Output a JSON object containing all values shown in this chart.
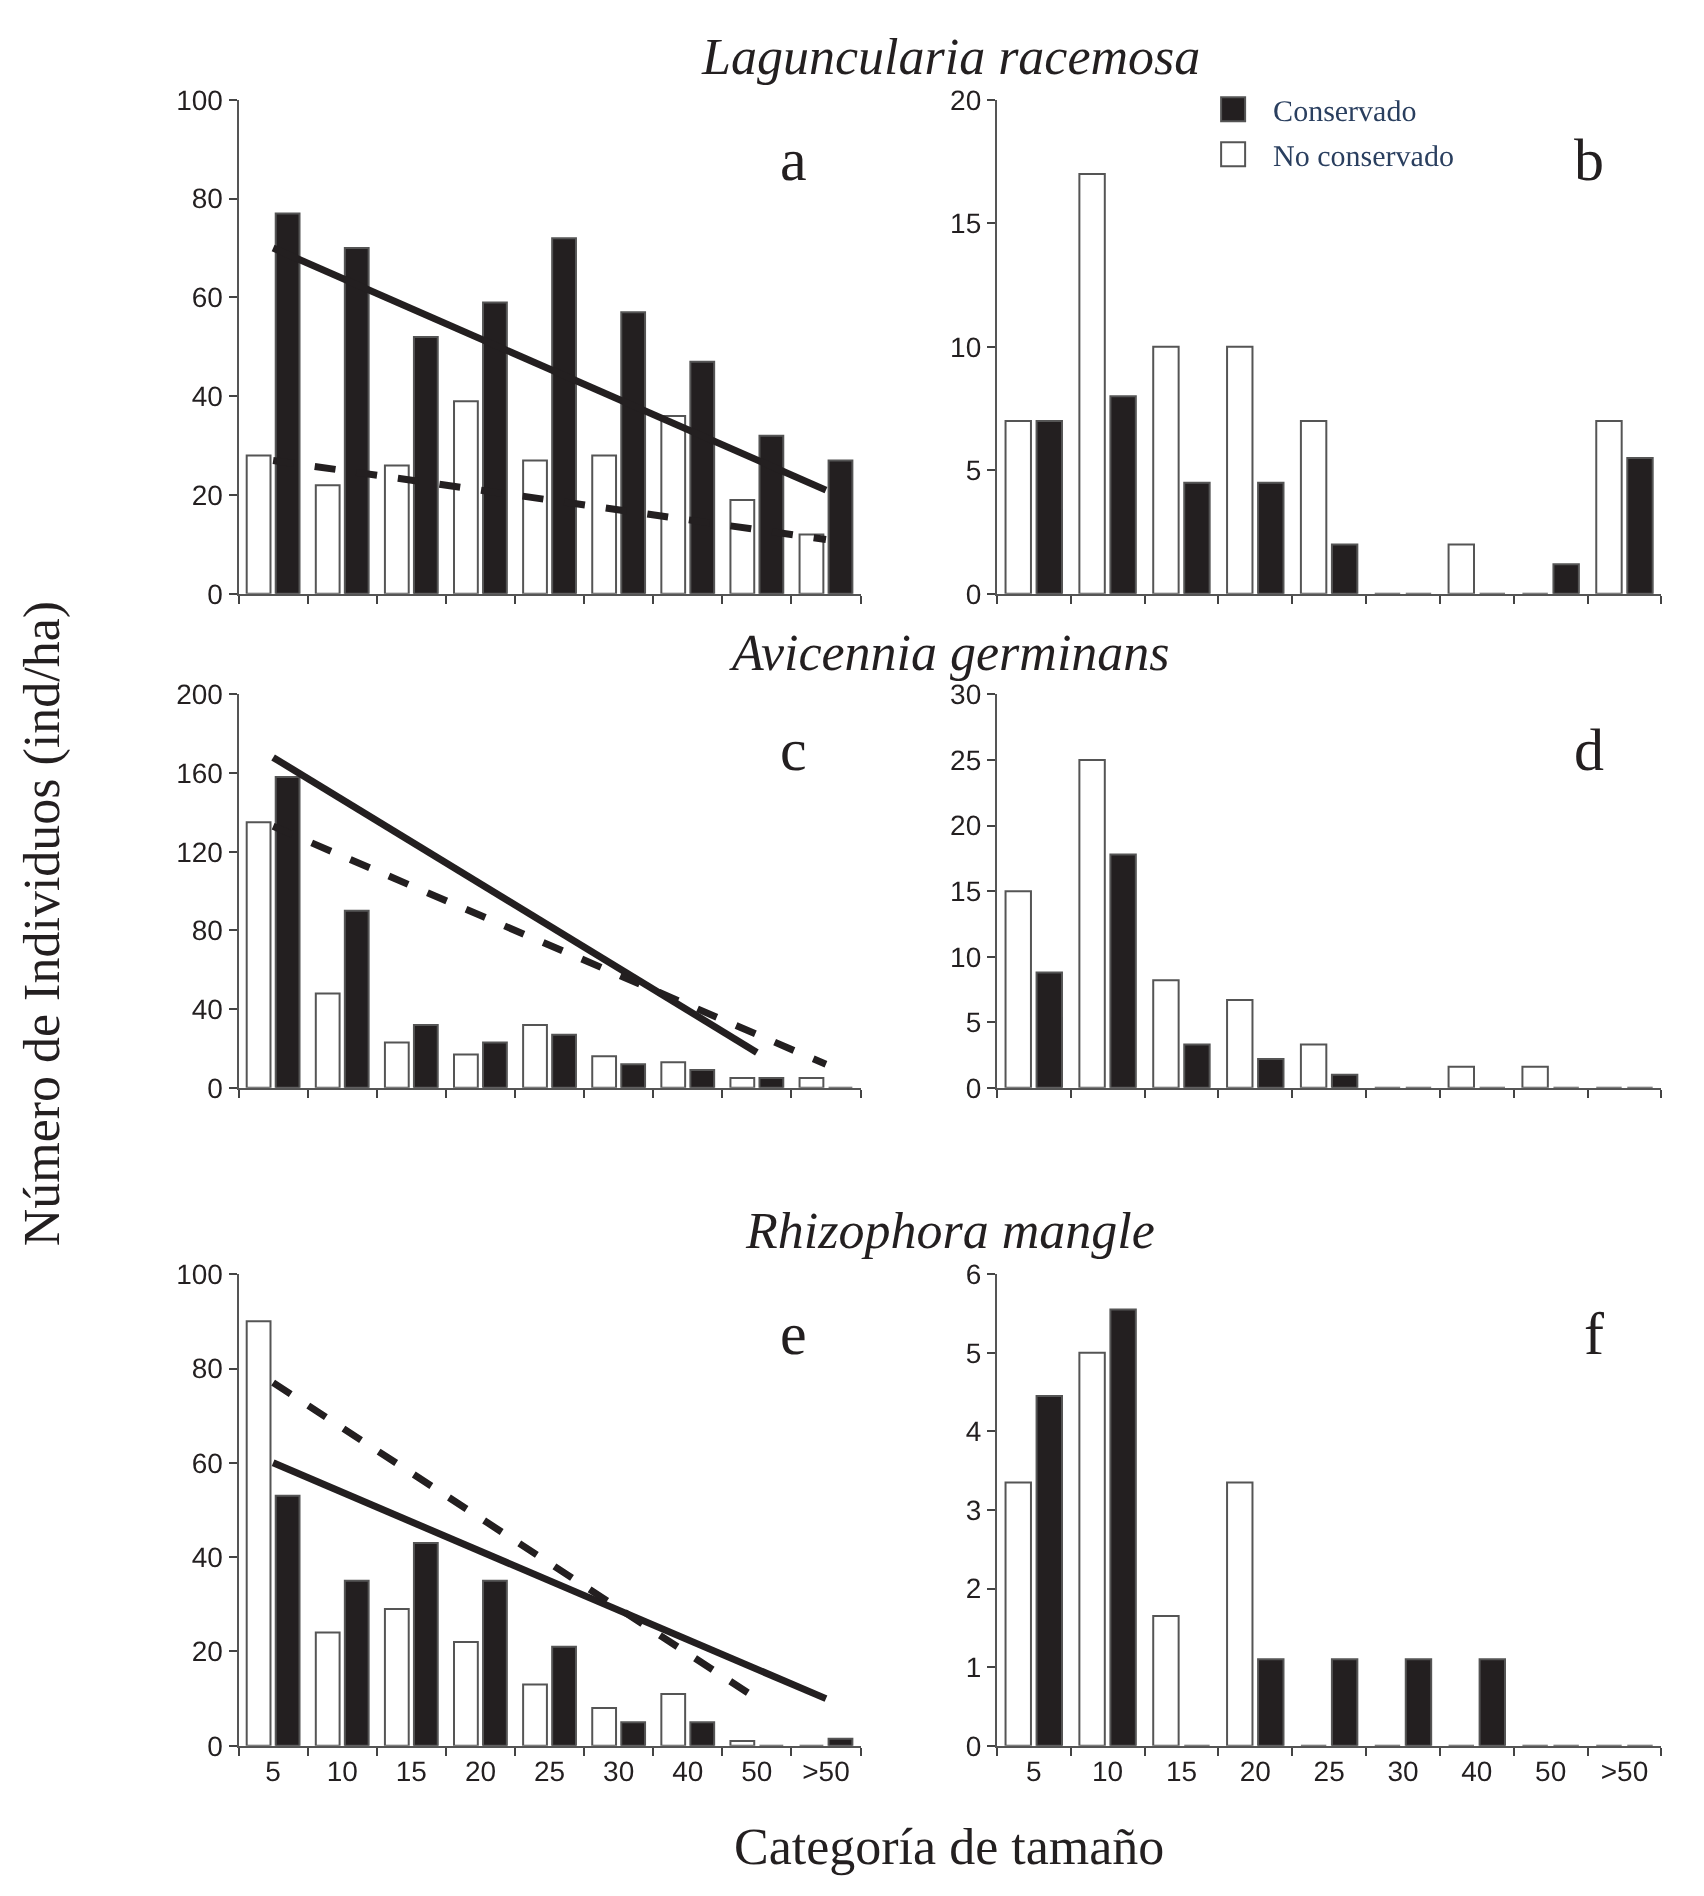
{
  "chart_data": [
    {
      "type": "bar",
      "title": "Laguncularia racemosa",
      "categories": [
        "5",
        "10",
        "15",
        "20",
        "25",
        "30",
        "40",
        "50",
        ">50"
      ],
      "ylim": [
        0,
        100
      ],
      "yticks": [
        0,
        20,
        40,
        60,
        80,
        100
      ],
      "tick_labels": "y",
      "annotations": [
        "a"
      ],
      "series": [
        {
          "color": "#ffffff",
          "values": [
            28,
            22,
            26,
            39,
            27,
            28,
            36,
            19,
            12
          ]
        },
        {
          "color": "#231f20",
          "values": [
            77,
            70,
            52,
            59,
            72,
            57,
            47,
            32,
            27
          ]
        },
        {
          "type": "line",
          "color": "#231f20",
          "line_style": "solid",
          "x": [
            "5",
            ">50"
          ],
          "values": [
            70,
            21
          ]
        },
        {
          "type": "line",
          "color": "#231f20",
          "line_style": "dashed",
          "x": [
            "5",
            ">50"
          ],
          "values": [
            27,
            11
          ]
        }
      ]
    },
    {
      "type": "bar",
      "categories": [
        "5",
        "10",
        "15",
        "20",
        "25",
        "30",
        "40",
        "50",
        ">50"
      ],
      "ylim": [
        0,
        20
      ],
      "yticks": [
        0,
        5,
        10,
        15,
        20
      ],
      "tick_labels": "y",
      "legend": "top",
      "annotations": [
        "b"
      ],
      "series": [
        {
          "name": "No conservado",
          "color": "#ffffff",
          "values": [
            7,
            17,
            10,
            10,
            7,
            0,
            2,
            0,
            7
          ]
        },
        {
          "name": "Conservado",
          "color": "#231f20",
          "values": [
            7,
            8,
            4.5,
            4.5,
            2,
            0,
            0,
            1.2,
            5.5
          ]
        }
      ]
    },
    {
      "type": "bar",
      "title": "Avicennia germinans",
      "ylabel": "Número de Individuos (ind/ha)",
      "categories": [
        "5",
        "10",
        "15",
        "20",
        "25",
        "30",
        "40",
        "50",
        ">50"
      ],
      "ylim": [
        0,
        200
      ],
      "yticks": [
        0,
        40,
        80,
        120,
        160,
        200
      ],
      "tick_labels": "y",
      "annotations": [
        "c"
      ],
      "series": [
        {
          "color": "#ffffff",
          "values": [
            135,
            48,
            23,
            17,
            32,
            16,
            13,
            5,
            5
          ]
        },
        {
          "color": "#231f20",
          "values": [
            158,
            90,
            32,
            23,
            27,
            12,
            9,
            5,
            0
          ]
        },
        {
          "type": "line",
          "color": "#231f20",
          "line_style": "solid",
          "x": [
            "5",
            "50"
          ],
          "values": [
            168,
            18
          ]
        },
        {
          "type": "line",
          "color": "#231f20",
          "line_style": "dashed",
          "x": [
            "5",
            ">50"
          ],
          "values": [
            133,
            12
          ]
        }
      ]
    },
    {
      "type": "bar",
      "categories": [
        "5",
        "10",
        "15",
        "20",
        "25",
        "30",
        "40",
        "50",
        ">50"
      ],
      "ylim": [
        0,
        30
      ],
      "yticks": [
        0,
        5,
        10,
        15,
        20,
        25,
        30
      ],
      "tick_labels": "y",
      "annotations": [
        "d"
      ],
      "series": [
        {
          "color": "#ffffff",
          "values": [
            15,
            25,
            8.2,
            6.7,
            3.3,
            0,
            1.6,
            1.6,
            0
          ]
        },
        {
          "color": "#231f20",
          "values": [
            8.8,
            17.8,
            3.3,
            2.2,
            1,
            0,
            0,
            0,
            0
          ]
        }
      ]
    },
    {
      "type": "bar",
      "title": "Rhizophora mangle",
      "xlabel": "Categoría de tamaño",
      "categories": [
        "5",
        "10",
        "15",
        "20",
        "25",
        "30",
        "40",
        "50",
        ">50"
      ],
      "ylim": [
        0,
        100
      ],
      "yticks": [
        0,
        20,
        40,
        60,
        80,
        100
      ],
      "annotations": [
        "e"
      ],
      "series": [
        {
          "color": "#ffffff",
          "values": [
            90,
            24,
            29,
            22,
            13,
            8,
            11,
            1,
            0
          ]
        },
        {
          "color": "#231f20",
          "values": [
            53,
            35,
            43,
            35,
            21,
            5,
            5,
            0,
            1.5
          ]
        },
        {
          "type": "line",
          "color": "#231f20",
          "line_style": "solid",
          "x": [
            "5",
            ">50"
          ],
          "values": [
            60,
            10
          ]
        },
        {
          "type": "line",
          "color": "#231f20",
          "line_style": "dashed",
          "x": [
            "5",
            "50"
          ],
          "values": [
            77,
            10
          ]
        }
      ]
    },
    {
      "type": "bar",
      "categories": [
        "5",
        "10",
        "15",
        "20",
        "25",
        "30",
        "40",
        "50",
        ">50"
      ],
      "ylim": [
        0,
        6
      ],
      "yticks": [
        0,
        1,
        2,
        3,
        4,
        5,
        6
      ],
      "annotations": [
        "f"
      ],
      "series": [
        {
          "color": "#ffffff",
          "values": [
            3.35,
            5,
            1.65,
            3.35,
            0,
            0,
            0,
            0,
            0
          ]
        },
        {
          "color": "#231f20",
          "values": [
            4.45,
            5.55,
            0,
            1.1,
            1.1,
            1.1,
            1.1,
            0,
            0
          ]
        }
      ]
    }
  ]
}
